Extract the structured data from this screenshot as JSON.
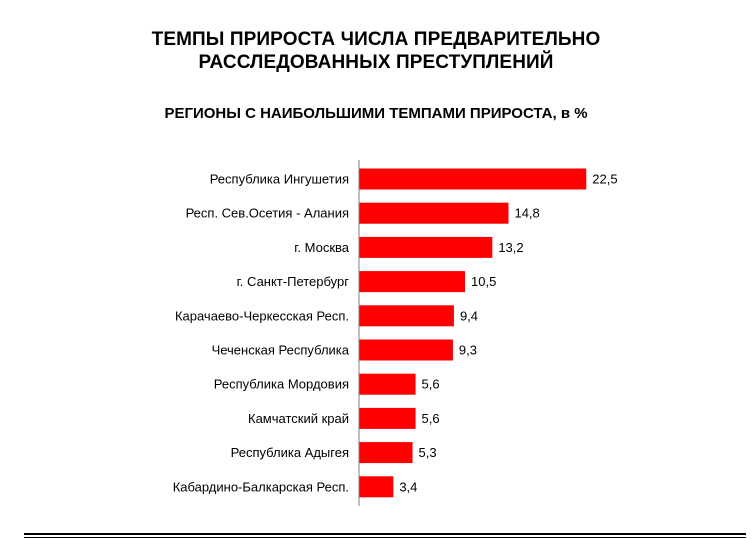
{
  "title": {
    "line1": "ТЕМПЫ ПРИРОСТА ЧИСЛА ПРЕДВАРИТЕЛЬНО",
    "line2": "РАССЛЕДОВАННЫХ ПРЕСТУПЛЕНИЙ"
  },
  "subtitle": "РЕГИОНЫ С НАИБОЛЬШИМИ ТЕМПАМИ ПРИРОСТА, в %",
  "colors": {
    "bar": "#ff0000",
    "axis": "#808080",
    "rule": "#000000"
  },
  "chart_data": {
    "type": "bar",
    "orientation": "horizontal",
    "title": "ТЕМПЫ ПРИРОСТА ЧИСЛА ПРЕДВАРИТЕЛЬНО РАССЛЕДОВАННЫХ ПРЕСТУПЛЕНИЙ",
    "subtitle": "РЕГИОНЫ С НАИБОЛЬШИМИ ТЕМПАМИ ПРИРОСТА, в %",
    "categories": [
      "Республика Ингушетия",
      "Респ. Сев.Осетия - Алания",
      "г. Москва",
      "г. Санкт-Петербург",
      "Карачаево-Черкесская Респ.",
      "Чеченская Республика",
      "Республика Мордовия",
      "Камчатский край",
      "Республика Адыгея",
      "Кабардино-Балкарская Респ."
    ],
    "values": [
      22.5,
      14.8,
      13.2,
      10.5,
      9.4,
      9.3,
      5.6,
      5.6,
      5.3,
      3.4
    ],
    "value_labels": [
      "22,5",
      "14,8",
      "13,2",
      "10,5",
      "9,4",
      "9,3",
      "5,6",
      "5,6",
      "5,3",
      "3,4"
    ],
    "xlabel": "",
    "ylabel": "",
    "xlim": [
      0,
      25
    ],
    "grid": false,
    "legend": "none"
  }
}
